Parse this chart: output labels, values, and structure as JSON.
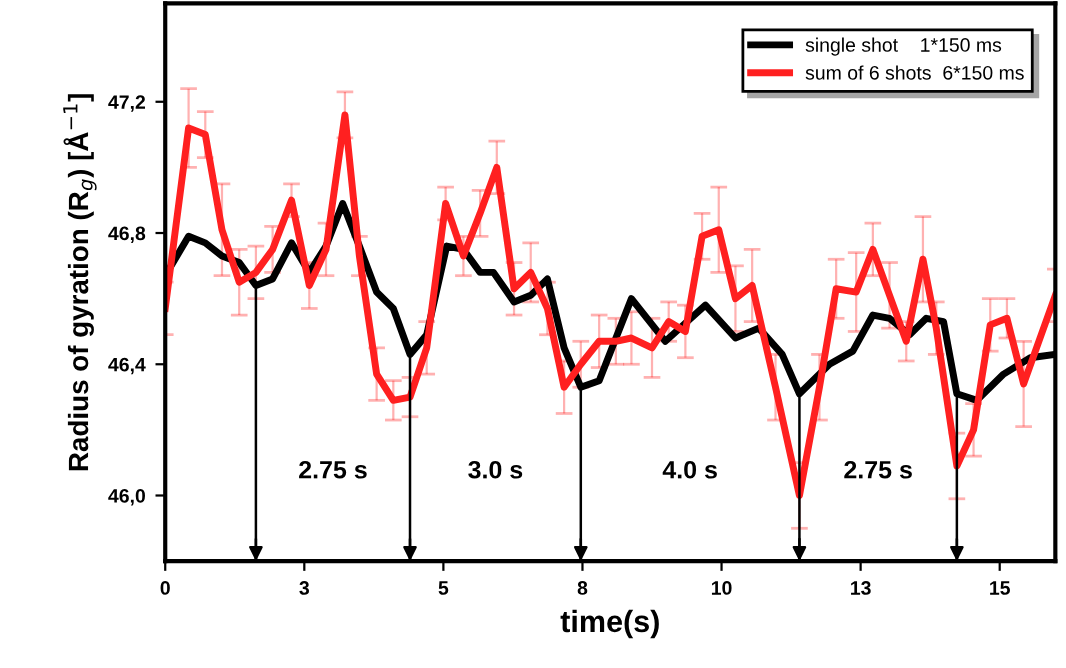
{
  "chart_data": {
    "type": "line",
    "xlabel": "time(s)",
    "ylabel": "Radius of gyration (R$_{g}$) [Å$^{−1}$]",
    "xlim": [
      0,
      16
    ],
    "ylim": [
      45.8,
      47.5
    ],
    "xticks": [
      0,
      {
        "value": 2.5,
        "label": "3"
      },
      5,
      {
        "value": 7.5,
        "label": "8"
      },
      10,
      {
        "value": 12.5,
        "label": "13"
      },
      15
    ],
    "yticks": [
      {
        "value": 46.0,
        "label": "46,0"
      },
      {
        "value": 46.4,
        "label": "46,4"
      },
      {
        "value": 46.8,
        "label": "46,8"
      },
      {
        "value": 47.2,
        "label": "47,2"
      }
    ],
    "legend": "top right",
    "grid": false,
    "marker": "none",
    "line_style": "solid",
    "series": [
      {
        "name": "single shot    1*150 ms",
        "color": "#000000",
        "x": [
          0,
          0.42,
          0.72,
          1.02,
          1.33,
          1.63,
          1.93,
          2.27,
          2.59,
          2.89,
          3.19,
          3.49,
          3.8,
          4.1,
          4.4,
          4.7,
          5.06,
          5.36,
          5.66,
          5.9,
          6.27,
          6.57,
          6.87,
          7.17,
          7.47,
          7.8,
          8.38,
          8.99,
          9.71,
          10.25,
          10.67,
          11.09,
          11.4,
          11.94,
          12.36,
          12.72,
          13.02,
          13.38,
          13.68,
          13.99,
          14.23,
          14.59,
          15.07,
          15.55,
          16.0
        ],
        "values": [
          46.67,
          46.79,
          46.77,
          46.73,
          46.71,
          46.64,
          46.66,
          46.77,
          46.68,
          46.76,
          46.89,
          46.76,
          46.62,
          46.57,
          46.43,
          46.49,
          46.76,
          46.75,
          46.68,
          46.68,
          46.59,
          46.61,
          46.66,
          46.45,
          46.33,
          46.35,
          46.6,
          46.47,
          46.58,
          46.48,
          46.51,
          46.43,
          46.31,
          46.4,
          46.44,
          46.55,
          46.54,
          46.49,
          46.54,
          46.53,
          46.31,
          46.29,
          46.37,
          46.42,
          46.43
        ]
      },
      {
        "name": "sum of 6 shots  6*150 ms",
        "color": "#ff2020",
        "x": [
          0,
          0.42,
          0.72,
          1.02,
          1.33,
          1.63,
          1.93,
          2.27,
          2.59,
          2.89,
          3.23,
          3.49,
          3.8,
          4.1,
          4.4,
          4.7,
          5.04,
          5.36,
          5.66,
          5.96,
          6.27,
          6.57,
          6.87,
          7.17,
          7.47,
          7.8,
          8.1,
          8.38,
          8.75,
          9.05,
          9.35,
          9.65,
          9.95,
          10.25,
          10.55,
          10.97,
          11.4,
          11.76,
          12.06,
          12.42,
          12.72,
          13.02,
          13.32,
          13.62,
          13.86,
          14.23,
          14.53,
          14.83,
          15.13,
          15.43,
          16.0
        ],
        "values": [
          46.57,
          47.12,
          47.1,
          46.81,
          46.65,
          46.68,
          46.75,
          46.9,
          46.64,
          46.75,
          47.16,
          46.73,
          46.37,
          46.29,
          46.3,
          46.45,
          46.89,
          46.73,
          46.86,
          47.0,
          46.63,
          46.68,
          46.57,
          46.33,
          46.4,
          46.47,
          46.47,
          46.48,
          46.45,
          46.53,
          46.5,
          46.79,
          46.81,
          46.6,
          46.64,
          46.33,
          46.0,
          46.33,
          46.63,
          46.62,
          46.75,
          46.61,
          46.47,
          46.72,
          46.51,
          46.09,
          46.2,
          46.52,
          46.54,
          46.34,
          46.61
        ],
        "errors": [
          0.08,
          0.12,
          0.07,
          0.14,
          0.1,
          0.08,
          0.07,
          0.05,
          0.07,
          0.08,
          0.07,
          0.06,
          0.08,
          0.06,
          0.06,
          0.08,
          0.05,
          0.06,
          0.07,
          0.08,
          0.08,
          0.09,
          0.08,
          0.08,
          0.07,
          0.08,
          0.07,
          0.08,
          0.09,
          0.06,
          0.08,
          0.07,
          0.13,
          0.1,
          0.11,
          0.1,
          0.1,
          0.1,
          0.09,
          0.12,
          0.08,
          0.1,
          0.06,
          0.13,
          0.08,
          0.1,
          0.08,
          0.08,
          0.06,
          0.13,
          0.08
        ]
      }
    ],
    "ref_lines": [
      {
        "axis": "x",
        "value": 1.63
      },
      {
        "axis": "x",
        "value": 4.4
      },
      {
        "axis": "x",
        "value": 7.47
      },
      {
        "axis": "x",
        "value": 11.4
      },
      {
        "axis": "x",
        "value": 14.23
      }
    ],
    "annotations": [
      "2.75 s",
      "3.0 s",
      "4.0 s",
      "2.75 s"
    ]
  }
}
